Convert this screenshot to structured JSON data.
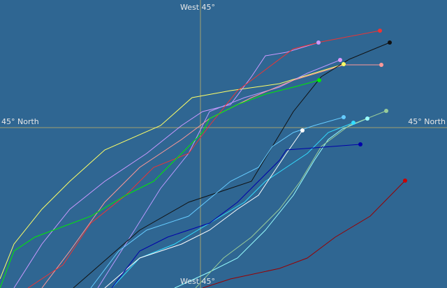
{
  "labels": {
    "top": "West 45°",
    "bottom": "West 45°",
    "left": "45° North",
    "right": "45° North"
  }
}
